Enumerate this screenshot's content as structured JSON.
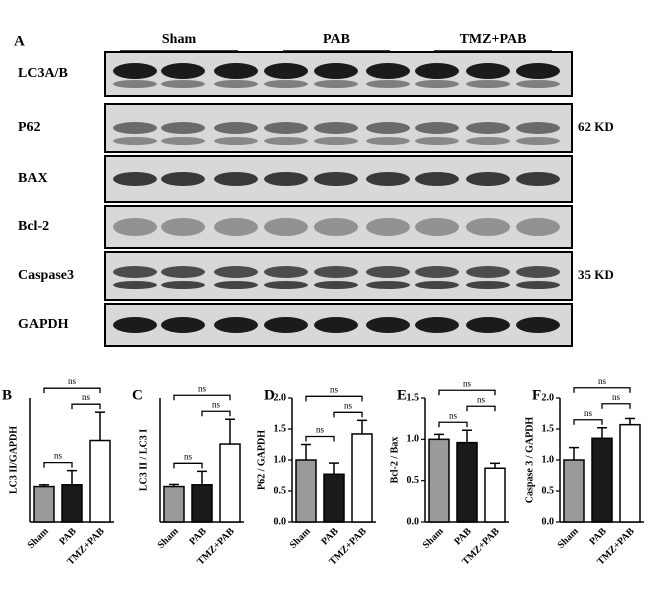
{
  "panel_a": {
    "letter": "A",
    "groups": [
      "Sham",
      "PAB",
      "TMZ+PAB"
    ],
    "rows": [
      "LC3A/B",
      "P62",
      "BAX",
      "Bcl-2",
      "Caspase3",
      "GAPDH"
    ],
    "markers": [
      {
        "row": 1,
        "label": "62 KD"
      },
      {
        "row": 4,
        "label": "35 KD"
      }
    ]
  },
  "chart_data": [
    {
      "type": "bar",
      "panel": "B",
      "ylabel": "LC3 II/GAPDH",
      "categories": [
        "Sham",
        "PAB",
        "TMZ+PAB"
      ],
      "values": [
        1.0,
        1.05,
        2.3
      ],
      "errors": [
        0.05,
        0.4,
        0.8
      ],
      "colors": [
        "#9a9a9a",
        "#1a1a1a",
        "#ffffff"
      ],
      "ylim": [
        0,
        3.5
      ],
      "comparisons": [
        {
          "between": [
            0,
            1
          ],
          "label": "ns"
        },
        {
          "between": [
            1,
            2
          ],
          "label": "ns"
        },
        {
          "between": [
            0,
            2
          ],
          "label": "ns"
        }
      ]
    },
    {
      "type": "bar",
      "panel": "C",
      "ylabel": "LC3 II / LC3 I",
      "categories": [
        "Sham",
        "PAB",
        "TMZ+PAB"
      ],
      "values": [
        1.0,
        1.05,
        2.2
      ],
      "errors": [
        0.06,
        0.38,
        0.7
      ],
      "colors": [
        "#9a9a9a",
        "#1a1a1a",
        "#ffffff"
      ],
      "ylim": [
        0,
        3.5
      ],
      "comparisons": [
        {
          "between": [
            0,
            1
          ],
          "label": "ns"
        },
        {
          "between": [
            1,
            2
          ],
          "label": "ns"
        },
        {
          "between": [
            0,
            2
          ],
          "label": "ns"
        }
      ]
    },
    {
      "type": "bar",
      "panel": "D",
      "ylabel": "P62 / GAPDH",
      "categories": [
        "Sham",
        "PAB",
        "TMZ+PAB"
      ],
      "values": [
        1.0,
        0.77,
        1.42
      ],
      "errors": [
        0.25,
        0.18,
        0.22
      ],
      "colors": [
        "#9a9a9a",
        "#1a1a1a",
        "#ffffff"
      ],
      "ylim": [
        0,
        2.0
      ],
      "yticks": [
        {
          "value": 0,
          "label": "0.0"
        },
        0.5,
        {
          "value": 1,
          "label": "1.0"
        },
        1.5,
        {
          "value": 2,
          "label": "2.0"
        }
      ],
      "comparisons": [
        {
          "between": [
            0,
            1
          ],
          "label": "ns"
        },
        {
          "between": [
            1,
            2
          ],
          "label": "ns"
        },
        {
          "between": [
            0,
            2
          ],
          "label": "ns"
        }
      ]
    },
    {
      "type": "bar",
      "panel": "E",
      "ylabel": "Bcl-2 / Bax",
      "categories": [
        "Sham",
        "PAB",
        "TMZ+PAB"
      ],
      "values": [
        1.0,
        0.96,
        0.65
      ],
      "errors": [
        0.06,
        0.15,
        0.06
      ],
      "colors": [
        "#9a9a9a",
        "#1a1a1a",
        "#ffffff"
      ],
      "ylim": [
        0,
        1.5
      ],
      "yticks": [
        {
          "value": 0,
          "label": "0.0"
        },
        0.5,
        {
          "value": 1,
          "label": "1.0"
        },
        1.5
      ],
      "comparisons": [
        {
          "between": [
            0,
            1
          ],
          "label": "ns"
        },
        {
          "between": [
            1,
            2
          ],
          "label": "ns"
        },
        {
          "between": [
            0,
            2
          ],
          "label": "ns"
        }
      ]
    },
    {
      "type": "bar",
      "panel": "F",
      "ylabel": "Caspase 3 / GAPDH",
      "categories": [
        "Sham",
        "PAB",
        "TMZ+PAB"
      ],
      "values": [
        1.0,
        1.35,
        1.57
      ],
      "errors": [
        0.2,
        0.17,
        0.1
      ],
      "colors": [
        "#9a9a9a",
        "#1a1a1a",
        "#ffffff"
      ],
      "ylim": [
        0,
        2.0
      ],
      "yticks": [
        {
          "value": 0,
          "label": "0.0"
        },
        0.5,
        {
          "value": 1,
          "label": "1.0"
        },
        1.5,
        {
          "value": 2,
          "label": "2.0"
        }
      ],
      "comparisons": [
        {
          "between": [
            0,
            1
          ],
          "label": "ns"
        },
        {
          "between": [
            1,
            2
          ],
          "label": "ns"
        },
        {
          "between": [
            0,
            2
          ],
          "label": "ns"
        }
      ]
    }
  ]
}
